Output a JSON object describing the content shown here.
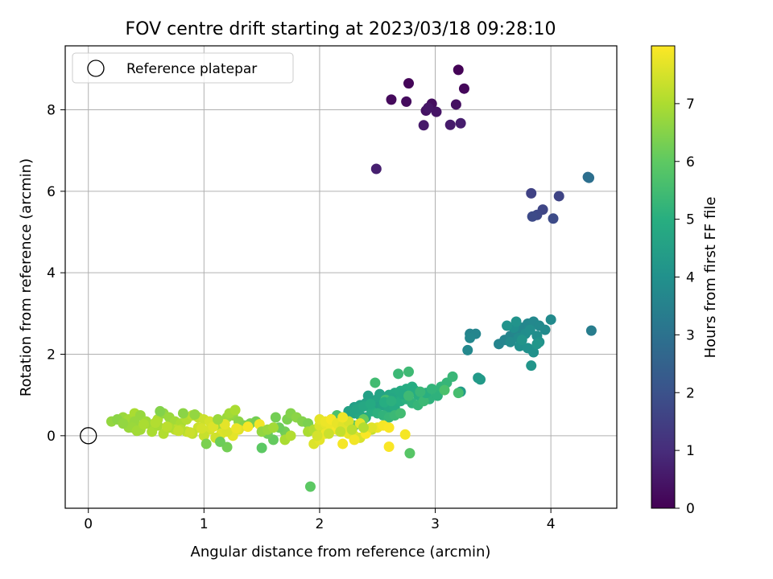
{
  "chart_data": {
    "type": "scatter",
    "title": "FOV centre drift starting at 2023/03/18 09:28:10",
    "xlabel": "Angular distance from reference (arcmin)",
    "ylabel": "Rotation from reference (arcmin)",
    "xlim": [
      -0.2,
      4.57
    ],
    "ylim": [
      -1.78,
      9.57
    ],
    "x_ticks": [
      0,
      1,
      2,
      3,
      4
    ],
    "y_ticks": [
      0,
      2,
      4,
      6,
      8
    ],
    "grid": true,
    "legend": {
      "position": "top-left",
      "entries": [
        "Reference platepar"
      ]
    },
    "reference_point": {
      "x": 0,
      "y": 0
    },
    "colorbar": {
      "label": "Hours from first FF file",
      "min": 0,
      "max": 8.0,
      "ticks": [
        0,
        1,
        2,
        3,
        4,
        5,
        6,
        7
      ],
      "colormap": "viridis"
    },
    "points": [
      [
        3.2,
        8.98,
        0.05
      ],
      [
        2.77,
        8.65,
        0.1
      ],
      [
        3.25,
        8.52,
        0.15
      ],
      [
        2.62,
        8.25,
        0.2
      ],
      [
        2.75,
        8.2,
        0.25
      ],
      [
        2.97,
        8.15,
        0.3
      ],
      [
        3.18,
        8.13,
        0.35
      ],
      [
        2.92,
        7.98,
        0.4
      ],
      [
        3.01,
        7.95,
        0.45
      ],
      [
        2.94,
        8.05,
        0.5
      ],
      [
        2.9,
        7.62,
        0.55
      ],
      [
        3.13,
        7.63,
        0.6
      ],
      [
        3.22,
        7.67,
        0.65
      ],
      [
        2.49,
        6.55,
        0.7
      ],
      [
        4.32,
        6.35,
        2.9
      ],
      [
        4.33,
        6.33,
        2.95
      ],
      [
        3.83,
        5.95,
        1.6
      ],
      [
        4.07,
        5.88,
        1.65
      ],
      [
        3.93,
        5.55,
        1.7
      ],
      [
        3.88,
        5.42,
        1.75
      ],
      [
        3.84,
        5.38,
        1.8
      ],
      [
        4.02,
        5.33,
        1.85
      ],
      [
        3.55,
        2.25,
        3.6
      ],
      [
        3.6,
        2.35,
        3.62
      ],
      [
        3.65,
        2.45,
        3.65
      ],
      [
        3.7,
        2.55,
        3.68
      ],
      [
        3.75,
        2.65,
        3.7
      ],
      [
        3.8,
        2.75,
        3.72
      ],
      [
        3.85,
        2.8,
        3.75
      ],
      [
        3.9,
        2.7,
        3.78
      ],
      [
        3.95,
        2.6,
        3.8
      ],
      [
        4.0,
        2.85,
        3.82
      ],
      [
        3.65,
        2.3,
        3.85
      ],
      [
        3.72,
        2.4,
        3.88
      ],
      [
        3.78,
        2.5,
        3.9
      ],
      [
        3.82,
        2.6,
        3.92
      ],
      [
        3.88,
        2.45,
        3.95
      ],
      [
        3.68,
        2.65,
        3.98
      ],
      [
        3.73,
        2.2,
        4.0
      ],
      [
        3.8,
        2.15,
        4.02
      ],
      [
        3.85,
        2.05,
        4.05
      ],
      [
        3.9,
        2.3,
        4.08
      ],
      [
        3.62,
        2.7,
        4.1
      ],
      [
        3.7,
        2.8,
        4.12
      ],
      [
        3.75,
        2.35,
        4.15
      ],
      [
        3.83,
        1.72,
        4.18
      ],
      [
        3.88,
        2.25,
        4.2
      ],
      [
        3.3,
        2.5,
        3.6
      ],
      [
        3.35,
        2.5,
        3.65
      ],
      [
        3.3,
        2.4,
        3.7
      ],
      [
        3.28,
        2.1,
        3.75
      ],
      [
        4.35,
        2.58,
        3.4
      ],
      [
        3.37,
        1.42,
        4.3
      ],
      [
        3.39,
        1.38,
        4.35
      ],
      [
        3.22,
        1.08,
        4.4
      ],
      [
        2.3,
        0.7,
        4.5
      ],
      [
        2.35,
        0.75,
        4.55
      ],
      [
        2.4,
        0.8,
        4.6
      ],
      [
        2.45,
        0.85,
        4.65
      ],
      [
        2.5,
        0.9,
        4.7
      ],
      [
        2.55,
        0.95,
        4.75
      ],
      [
        2.6,
        1.0,
        4.8
      ],
      [
        2.65,
        1.05,
        4.85
      ],
      [
        2.7,
        1.1,
        4.9
      ],
      [
        2.75,
        1.15,
        4.95
      ],
      [
        2.8,
        1.2,
        5.0
      ],
      [
        2.85,
        1.0,
        5.05
      ],
      [
        2.9,
        0.95,
        5.1
      ],
      [
        2.95,
        0.9,
        5.15
      ],
      [
        3.0,
        1.1,
        5.2
      ],
      [
        3.05,
        1.2,
        5.25
      ],
      [
        3.1,
        1.3,
        5.3
      ],
      [
        3.15,
        1.45,
        5.35
      ],
      [
        2.68,
        1.52,
        5.4
      ],
      [
        2.77,
        1.57,
        5.45
      ],
      [
        2.48,
        1.3,
        5.5
      ],
      [
        2.5,
        0.7,
        4.6
      ],
      [
        2.55,
        0.75,
        4.7
      ],
      [
        2.6,
        0.65,
        4.8
      ],
      [
        2.65,
        0.7,
        4.9
      ],
      [
        2.7,
        0.85,
        5.0
      ],
      [
        2.75,
        0.9,
        5.1
      ],
      [
        2.8,
        0.8,
        5.2
      ],
      [
        2.85,
        0.75,
        5.3
      ],
      [
        2.9,
        0.85,
        5.4
      ],
      [
        2.25,
        0.6,
        4.6
      ],
      [
        2.3,
        0.55,
        4.7
      ],
      [
        2.35,
        0.5,
        4.8
      ],
      [
        2.4,
        0.45,
        4.9
      ],
      [
        2.45,
        0.6,
        5.0
      ],
      [
        2.5,
        0.55,
        5.1
      ],
      [
        2.55,
        0.5,
        5.2
      ],
      [
        2.6,
        0.45,
        5.3
      ],
      [
        2.65,
        0.5,
        5.4
      ],
      [
        2.7,
        0.55,
        5.5
      ],
      [
        2.2,
        0.45,
        5.6
      ],
      [
        2.15,
        0.5,
        5.7
      ],
      [
        2.1,
        0.4,
        5.8
      ],
      [
        2.42,
        0.98,
        4.55
      ],
      [
        2.52,
        1.02,
        4.65
      ],
      [
        2.62,
        0.92,
        4.75
      ],
      [
        2.72,
        1.02,
        4.85
      ],
      [
        2.82,
        1.12,
        4.95
      ],
      [
        2.92,
        1.05,
        5.05
      ],
      [
        3.02,
        0.98,
        5.15
      ],
      [
        2.97,
        1.15,
        5.25
      ],
      [
        2.87,
        1.08,
        5.35
      ],
      [
        2.77,
        0.98,
        5.45
      ],
      [
        2.57,
        0.88,
        5.55
      ],
      [
        3.2,
        1.05,
        5.6
      ],
      [
        3.08,
        1.12,
        5.7
      ],
      [
        2.2,
        0.3,
        5.8
      ],
      [
        2.25,
        0.35,
        5.9
      ],
      [
        2.3,
        0.25,
        6.0
      ],
      [
        2.38,
        0.4,
        6.1
      ],
      [
        2.32,
        0.65,
        4.7
      ],
      [
        2.38,
        0.72,
        4.8
      ],
      [
        2.44,
        0.78,
        4.9
      ],
      [
        2.56,
        0.82,
        5.0
      ],
      [
        2.62,
        0.85,
        5.1
      ],
      [
        0.2,
        0.35,
        6.7
      ],
      [
        0.3,
        0.45,
        6.8
      ],
      [
        0.35,
        0.4,
        6.9
      ],
      [
        0.4,
        0.55,
        7.0
      ],
      [
        0.45,
        0.5,
        6.75
      ],
      [
        0.5,
        0.35,
        6.85
      ],
      [
        0.55,
        0.25,
        6.95
      ],
      [
        0.6,
        0.4,
        7.05
      ],
      [
        0.65,
        0.55,
        6.7
      ],
      [
        0.7,
        0.45,
        6.8
      ],
      [
        0.75,
        0.35,
        6.9
      ],
      [
        0.8,
        0.3,
        7.0
      ],
      [
        0.85,
        0.4,
        7.1
      ],
      [
        0.9,
        0.5,
        7.2
      ],
      [
        0.95,
        0.45,
        7.3
      ],
      [
        1.0,
        0.4,
        7.4
      ],
      [
        1.05,
        0.35,
        7.5
      ],
      [
        1.1,
        0.25,
        7.0
      ],
      [
        1.15,
        0.3,
        6.9
      ],
      [
        1.2,
        0.45,
        6.8
      ],
      [
        1.25,
        0.5,
        6.7
      ],
      [
        1.3,
        0.35,
        6.6
      ],
      [
        1.35,
        0.25,
        6.5
      ],
      [
        1.4,
        0.3,
        6.4
      ],
      [
        1.45,
        0.35,
        6.3
      ],
      [
        0.35,
        0.2,
        6.8
      ],
      [
        0.45,
        0.15,
        6.9
      ],
      [
        0.55,
        0.1,
        7.0
      ],
      [
        0.65,
        0.05,
        7.1
      ],
      [
        0.75,
        0.15,
        7.2
      ],
      [
        0.85,
        0.1,
        7.3
      ],
      [
        0.95,
        0.2,
        7.4
      ],
      [
        1.05,
        0.15,
        7.5
      ],
      [
        1.15,
        0.05,
        7.6
      ],
      [
        1.25,
        0.0,
        7.7
      ],
      [
        0.4,
        0.35,
        6.75
      ],
      [
        0.5,
        0.3,
        6.85
      ],
      [
        0.6,
        0.25,
        6.95
      ],
      [
        0.7,
        0.2,
        7.05
      ],
      [
        0.8,
        0.15,
        7.15
      ],
      [
        0.9,
        0.05,
        7.25
      ],
      [
        1.0,
        0.0,
        7.35
      ],
      [
        1.1,
        -0.05,
        7.45
      ],
      [
        1.2,
        0.1,
        7.55
      ],
      [
        1.3,
        0.15,
        7.65
      ],
      [
        0.25,
        0.4,
        6.6
      ],
      [
        0.3,
        0.3,
        6.7
      ],
      [
        0.38,
        0.2,
        6.8
      ],
      [
        0.42,
        0.12,
        6.9
      ],
      [
        0.48,
        0.28,
        7.0
      ],
      [
        0.58,
        0.32,
        7.1
      ],
      [
        0.68,
        0.22,
        7.2
      ],
      [
        0.78,
        0.12,
        7.3
      ],
      [
        0.88,
        0.08,
        7.4
      ],
      [
        0.98,
        0.18,
        7.5
      ],
      [
        1.08,
        0.22,
        7.6
      ],
      [
        1.18,
        0.28,
        7.7
      ],
      [
        1.28,
        0.18,
        7.8
      ],
      [
        1.38,
        0.22,
        7.9
      ],
      [
        1.48,
        0.28,
        7.85
      ],
      [
        0.62,
        0.6,
        6.5
      ],
      [
        0.82,
        0.55,
        6.6
      ],
      [
        0.92,
        0.52,
        6.7
      ],
      [
        1.12,
        0.4,
        6.8
      ],
      [
        1.22,
        0.55,
        6.9
      ],
      [
        1.27,
        0.63,
        7.0
      ],
      [
        1.02,
        -0.2,
        6.4
      ],
      [
        1.2,
        -0.28,
        6.3
      ],
      [
        1.14,
        -0.15,
        6.2
      ],
      [
        1.5,
        -0.3,
        6.0
      ],
      [
        1.6,
        -0.1,
        6.1
      ],
      [
        1.55,
        0.05,
        6.2
      ],
      [
        1.62,
        0.45,
        6.3
      ],
      [
        1.72,
        0.4,
        6.4
      ],
      [
        1.75,
        0.55,
        6.5
      ],
      [
        1.8,
        0.45,
        6.6
      ],
      [
        1.85,
        0.35,
        6.5
      ],
      [
        1.9,
        0.3,
        6.4
      ],
      [
        1.7,
        0.1,
        6.3
      ],
      [
        1.65,
        0.2,
        6.2
      ],
      [
        1.5,
        0.1,
        6.7
      ],
      [
        1.55,
        0.15,
        6.8
      ],
      [
        1.6,
        0.2,
        6.9
      ],
      [
        1.7,
        -0.1,
        7.0
      ],
      [
        1.75,
        0.0,
        7.1
      ],
      [
        1.92,
        -1.25,
        6.0
      ],
      [
        2.78,
        -0.43,
        5.9
      ],
      [
        1.9,
        0.1,
        7.0
      ],
      [
        1.95,
        0.15,
        7.1
      ],
      [
        2.0,
        0.2,
        7.2
      ],
      [
        2.0,
        0.25,
        7.6
      ],
      [
        2.05,
        0.3,
        7.7
      ],
      [
        2.1,
        0.2,
        7.8
      ],
      [
        2.15,
        0.15,
        7.9
      ],
      [
        2.2,
        0.1,
        7.85
      ],
      [
        2.25,
        0.05,
        7.75
      ],
      [
        2.3,
        0.0,
        7.65
      ],
      [
        2.35,
        -0.05,
        7.55
      ],
      [
        2.4,
        0.1,
        7.45
      ],
      [
        2.45,
        0.15,
        7.35
      ],
      [
        2.5,
        0.2,
        7.8
      ],
      [
        2.55,
        0.25,
        7.9
      ],
      [
        2.6,
        0.2,
        7.95
      ],
      [
        2.0,
        0.4,
        7.7
      ],
      [
        2.05,
        0.35,
        7.8
      ],
      [
        2.1,
        0.4,
        7.9
      ],
      [
        2.15,
        0.3,
        7.75
      ],
      [
        2.2,
        0.25,
        7.65
      ],
      [
        2.25,
        0.35,
        7.55
      ],
      [
        1.95,
        -0.2,
        7.6
      ],
      [
        2.0,
        -0.1,
        7.7
      ],
      [
        2.05,
        0.05,
        7.8
      ],
      [
        2.2,
        -0.2,
        7.9
      ],
      [
        2.3,
        -0.1,
        7.85
      ],
      [
        2.4,
        0.05,
        7.95
      ],
      [
        2.6,
        -0.27,
        7.95
      ],
      [
        2.74,
        0.03,
        7.9
      ],
      [
        2.2,
        0.45,
        7.85
      ],
      [
        2.35,
        0.3,
        7.75
      ],
      [
        2.45,
        0.2,
        7.65
      ],
      [
        1.98,
        0.0,
        7.5
      ],
      [
        2.08,
        0.05,
        7.4
      ],
      [
        2.18,
        0.1,
        7.3
      ],
      [
        2.28,
        0.15,
        7.2
      ],
      [
        2.38,
        0.2,
        7.1
      ]
    ]
  }
}
